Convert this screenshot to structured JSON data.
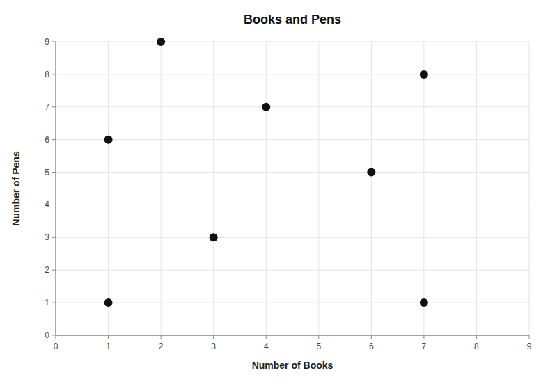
{
  "chart_data": {
    "type": "scatter",
    "title": "Books and Pens",
    "xlabel": "Number of Books",
    "ylabel": "Number of Pens",
    "x": [
      1,
      2,
      3,
      4,
      6,
      7,
      1,
      7
    ],
    "values": [
      6,
      9,
      3,
      7,
      5,
      8,
      1,
      1
    ],
    "color": "#111111",
    "xlim": [
      0,
      9
    ],
    "ylim": [
      0,
      9
    ],
    "xticks": [
      0,
      1,
      2,
      3,
      4,
      5,
      6,
      7,
      8,
      9
    ],
    "yticks": [
      0,
      1,
      2,
      3,
      4,
      5,
      6,
      7,
      8,
      9
    ],
    "grid": true
  }
}
